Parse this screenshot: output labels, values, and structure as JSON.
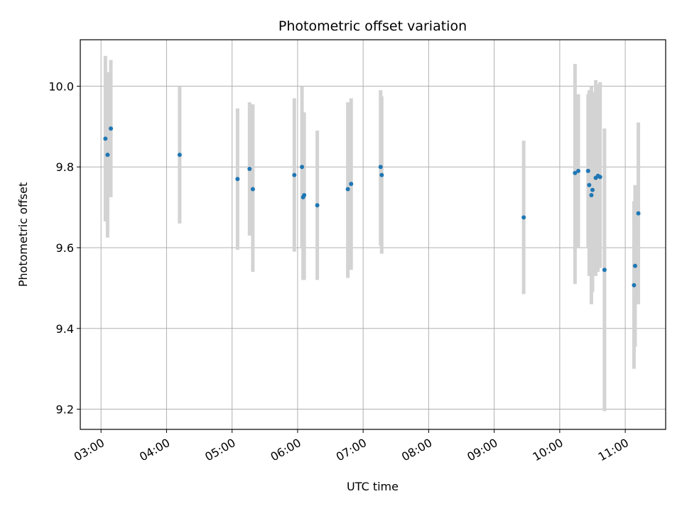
{
  "chart_data": {
    "type": "scatter",
    "title": "Photometric offset variation",
    "xlabel": "UTC time",
    "ylabel": "Photometric offset",
    "x_tick_labels": [
      "03:00",
      "04:00",
      "05:00",
      "06:00",
      "07:00",
      "08:00",
      "09:00",
      "10:00",
      "11:00"
    ],
    "y_tick_labels": [
      "9.2",
      "9.4",
      "9.6",
      "9.8",
      "10.0"
    ],
    "y_ticks": [
      9.2,
      9.4,
      9.6,
      9.8,
      10.0
    ],
    "xlim": [
      "02:41",
      "11:37"
    ],
    "ylim": [
      9.15,
      10.115
    ],
    "grid": true,
    "marker_color": "#1f77b4",
    "errorbar_color": "#d3d3d3",
    "points": [
      {
        "x": "03:04",
        "y": 9.87,
        "low": 9.665,
        "high": 10.075
      },
      {
        "x": "03:06",
        "y": 9.83,
        "low": 9.625,
        "high": 10.035
      },
      {
        "x": "03:09",
        "y": 9.895,
        "low": 9.725,
        "high": 10.065
      },
      {
        "x": "04:12",
        "y": 9.83,
        "low": 9.66,
        "high": 10.0
      },
      {
        "x": "05:05",
        "y": 9.77,
        "low": 9.595,
        "high": 9.945
      },
      {
        "x": "05:16",
        "y": 9.795,
        "low": 9.63,
        "high": 9.96
      },
      {
        "x": "05:19",
        "y": 9.745,
        "low": 9.54,
        "high": 9.955
      },
      {
        "x": "05:57",
        "y": 9.78,
        "low": 9.59,
        "high": 9.97
      },
      {
        "x": "06:04",
        "y": 9.8,
        "low": 9.6,
        "high": 10.0
      },
      {
        "x": "06:05",
        "y": 9.725,
        "low": 9.52,
        "high": 9.93
      },
      {
        "x": "06:06",
        "y": 9.73,
        "low": 9.52,
        "high": 9.935
      },
      {
        "x": "06:18",
        "y": 9.705,
        "low": 9.52,
        "high": 9.89
      },
      {
        "x": "06:46",
        "y": 9.745,
        "low": 9.525,
        "high": 9.96
      },
      {
        "x": "06:49",
        "y": 9.758,
        "low": 9.545,
        "high": 9.97
      },
      {
        "x": "07:16",
        "y": 9.8,
        "low": 9.605,
        "high": 9.99
      },
      {
        "x": "07:17",
        "y": 9.78,
        "low": 9.585,
        "high": 9.975
      },
      {
        "x": "09:27",
        "y": 9.675,
        "low": 9.485,
        "high": 9.865
      },
      {
        "x": "10:14",
        "y": 9.785,
        "low": 9.51,
        "high": 10.055
      },
      {
        "x": "10:17",
        "y": 9.79,
        "low": 9.6,
        "high": 9.98
      },
      {
        "x": "10:26",
        "y": 9.79,
        "low": 9.6,
        "high": 9.98
      },
      {
        "x": "10:27",
        "y": 9.755,
        "low": 9.53,
        "high": 9.99
      },
      {
        "x": "10:29",
        "y": 9.73,
        "low": 9.46,
        "high": 10.0
      },
      {
        "x": "10:30",
        "y": 9.743,
        "low": 9.49,
        "high": 9.985
      },
      {
        "x": "10:33",
        "y": 9.773,
        "low": 9.53,
        "high": 10.015
      },
      {
        "x": "10:35",
        "y": 9.778,
        "low": 9.54,
        "high": 10.005
      },
      {
        "x": "10:37",
        "y": 9.775,
        "low": 9.55,
        "high": 10.01
      },
      {
        "x": "10:41",
        "y": 9.545,
        "low": 9.195,
        "high": 9.895
      },
      {
        "x": "11:08",
        "y": 9.507,
        "low": 9.3,
        "high": 9.715
      },
      {
        "x": "11:09",
        "y": 9.555,
        "low": 9.355,
        "high": 9.755
      },
      {
        "x": "11:12",
        "y": 9.685,
        "low": 9.46,
        "high": 9.91
      }
    ]
  }
}
